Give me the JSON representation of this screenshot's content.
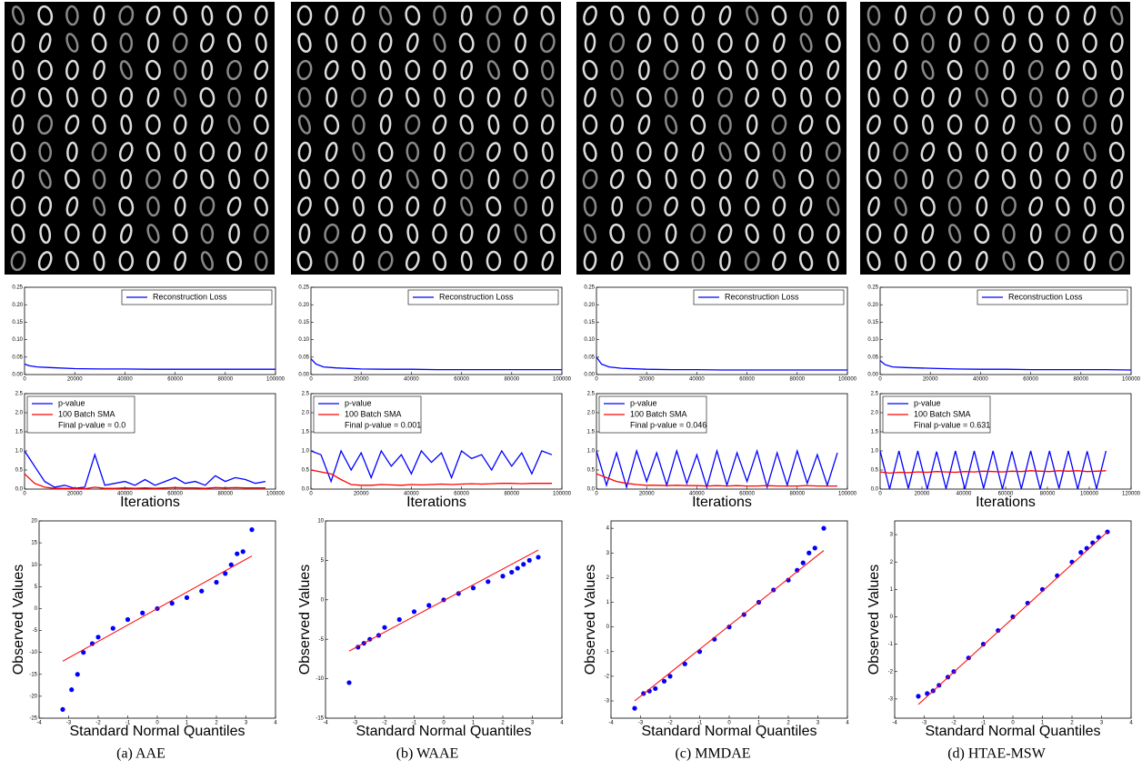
{
  "captions": [
    "(a) AAE",
    "(b) WAAE",
    "(c) MMDAE",
    "(d) HTAE-MSW"
  ],
  "chart_data": [
    {
      "type": "line",
      "legend": "upper right",
      "x": [
        0,
        2000,
        5000,
        10000,
        20000,
        30000,
        40000,
        50000,
        60000,
        70000,
        80000,
        90000,
        100000
      ],
      "xlim": [
        0,
        100000
      ],
      "xticks": [
        0,
        20000,
        40000,
        60000,
        80000,
        100000
      ],
      "ylim": [
        0,
        0.25
      ],
      "yticks": [
        {
          "value": 0,
          "label": "0.00"
        },
        0.05,
        {
          "value": 0.1,
          "label": "0.10"
        },
        0.15,
        {
          "value": 0.2,
          "label": "0.20"
        },
        0.25
      ],
      "series": [
        {
          "name": "Reconstruction Loss",
          "color": "#0000ff",
          "values": [
            0.03,
            0.025,
            0.022,
            0.02,
            0.017,
            0.016,
            0.016,
            0.015,
            0.015,
            0.015,
            0.015,
            0.015,
            0.015
          ]
        }
      ]
    },
    {
      "type": "line",
      "legend": "upper left",
      "annotation": "Final p-value = 0.0",
      "xlabel": "Iterations",
      "x": [
        0,
        4000,
        8000,
        12000,
        16000,
        20000,
        24000,
        28000,
        32000,
        36000,
        40000,
        44000,
        48000,
        52000,
        56000,
        60000,
        64000,
        68000,
        72000,
        76000,
        80000,
        84000,
        88000,
        92000,
        96000
      ],
      "xlim": [
        0,
        100000
      ],
      "xticks": [
        0,
        20000,
        40000,
        60000,
        80000,
        100000
      ],
      "ylim": [
        0,
        2.5
      ],
      "yticks": [
        {
          "value": 0,
          "label": "0.0"
        },
        0.5,
        {
          "value": 1,
          "label": "1.0"
        },
        1.5,
        {
          "value": 2,
          "label": "2.0"
        },
        2.5
      ],
      "series": [
        {
          "name": "p-value",
          "color": "#0000ff",
          "values": [
            1.0,
            0.6,
            0.2,
            0.05,
            0.1,
            0.02,
            0.05,
            0.9,
            0.1,
            0.15,
            0.2,
            0.1,
            0.25,
            0.1,
            0.2,
            0.3,
            0.15,
            0.2,
            0.1,
            0.35,
            0.2,
            0.3,
            0.25,
            0.15,
            0.2
          ]
        },
        {
          "name": "100 Batch SMA",
          "color": "#ff0000",
          "values": [
            0.4,
            0.15,
            0.05,
            0.02,
            0.02,
            0.01,
            0.01,
            0.05,
            0.02,
            0.02,
            0.03,
            0.02,
            0.03,
            0.02,
            0.03,
            0.04,
            0.03,
            0.03,
            0.02,
            0.04,
            0.03,
            0.04,
            0.03,
            0.03,
            0.03
          ]
        }
      ]
    },
    {
      "type": "scatter",
      "xlabel": "Standard Normal Quantiles",
      "ylabel": "Observed Values",
      "xlim": [
        -4,
        4
      ],
      "xticks": [
        -4,
        -3,
        -2,
        -1,
        0,
        1,
        2,
        3,
        4
      ],
      "ylim": [
        -25,
        20
      ],
      "yticks": [
        -25,
        -20,
        -15,
        -10,
        -5,
        0,
        5,
        10,
        15,
        20
      ],
      "series": [
        {
          "style": "points",
          "color": "#0000ff",
          "x": [
            -3.2,
            -2.9,
            -2.7,
            -2.5,
            -2.2,
            -2.0,
            -1.5,
            -1.0,
            -0.5,
            0,
            0.5,
            1.0,
            1.5,
            2.0,
            2.3,
            2.5,
            2.7,
            2.9,
            3.2
          ],
          "values": [
            -23,
            -18.5,
            -15,
            -10,
            -8,
            -6.5,
            -4.5,
            -2.5,
            -1,
            0,
            1.2,
            2.5,
            4,
            6,
            8,
            10,
            12.5,
            13,
            18
          ]
        },
        {
          "style": "line",
          "color": "#ff0000",
          "x": [
            -3.2,
            3.2
          ],
          "values": [
            -12,
            12
          ]
        }
      ]
    },
    {
      "type": "line",
      "legend": "upper right",
      "x": [
        0,
        2000,
        5000,
        10000,
        20000,
        30000,
        40000,
        50000,
        60000,
        70000,
        80000,
        90000,
        100000
      ],
      "xlim": [
        0,
        100000
      ],
      "xticks": [
        0,
        20000,
        40000,
        60000,
        80000,
        100000
      ],
      "ylim": [
        0,
        0.25
      ],
      "yticks": [
        {
          "value": 0,
          "label": "0.00"
        },
        0.05,
        {
          "value": 0.1,
          "label": "0.10"
        },
        0.15,
        {
          "value": 0.2,
          "label": "0.20"
        },
        0.25
      ],
      "series": [
        {
          "name": "Reconstruction Loss",
          "color": "#0000ff",
          "values": [
            0.045,
            0.03,
            0.022,
            0.019,
            0.016,
            0.015,
            0.015,
            0.014,
            0.014,
            0.014,
            0.014,
            0.014,
            0.014
          ]
        }
      ]
    },
    {
      "type": "line",
      "legend": "upper left",
      "annotation": "Final p-value = 0.001",
      "xlabel": "Iterations",
      "x": [
        0,
        4000,
        8000,
        12000,
        16000,
        20000,
        24000,
        28000,
        32000,
        36000,
        40000,
        44000,
        48000,
        52000,
        56000,
        60000,
        64000,
        68000,
        72000,
        76000,
        80000,
        84000,
        88000,
        92000,
        96000
      ],
      "xlim": [
        0,
        100000
      ],
      "xticks": [
        0,
        20000,
        40000,
        60000,
        80000,
        100000
      ],
      "ylim": [
        0,
        2.5
      ],
      "yticks": [
        {
          "value": 0,
          "label": "0.0"
        },
        0.5,
        {
          "value": 1,
          "label": "1.0"
        },
        1.5,
        {
          "value": 2,
          "label": "2.0"
        },
        2.5
      ],
      "series": [
        {
          "name": "p-value",
          "color": "#0000ff",
          "values": [
            1,
            0.9,
            0.2,
            1,
            0.5,
            0.95,
            0.3,
            1,
            0.6,
            0.9,
            0.4,
            1,
            0.7,
            0.95,
            0.3,
            1,
            0.8,
            0.9,
            0.5,
            1,
            0.6,
            0.95,
            0.4,
            1,
            0.9
          ]
        },
        {
          "name": "100 Batch SMA",
          "color": "#ff0000",
          "values": [
            0.5,
            0.45,
            0.4,
            0.25,
            0.12,
            0.1,
            0.1,
            0.12,
            0.11,
            0.1,
            0.12,
            0.11,
            0.12,
            0.13,
            0.12,
            0.13,
            0.14,
            0.13,
            0.14,
            0.15,
            0.15,
            0.14,
            0.15,
            0.15,
            0.15
          ]
        }
      ]
    },
    {
      "type": "scatter",
      "xlabel": "Standard Normal Quantiles",
      "ylabel": "Observed Values",
      "xlim": [
        -4,
        4
      ],
      "xticks": [
        -4,
        -3,
        -2,
        -1,
        0,
        1,
        2,
        3,
        4
      ],
      "ylim": [
        -15,
        10
      ],
      "yticks": [
        -15,
        -10,
        -5,
        0,
        5,
        10
      ],
      "series": [
        {
          "style": "points",
          "color": "#0000ff",
          "x": [
            -3.2,
            -2.9,
            -2.7,
            -2.5,
            -2.2,
            -2.0,
            -1.5,
            -1.0,
            -0.5,
            0,
            0.5,
            1.0,
            1.5,
            2.0,
            2.3,
            2.5,
            2.7,
            2.9,
            3.2
          ],
          "values": [
            -10.5,
            -6,
            -5.5,
            -5,
            -4.5,
            -3.5,
            -2.5,
            -1.5,
            -0.7,
            0,
            0.8,
            1.5,
            2.3,
            3,
            3.5,
            4,
            4.5,
            5,
            5.4
          ]
        },
        {
          "style": "line",
          "color": "#ff0000",
          "x": [
            -3.2,
            3.2
          ],
          "values": [
            -6.5,
            6.3
          ]
        }
      ]
    },
    {
      "type": "line",
      "legend": "upper right",
      "x": [
        0,
        2000,
        5000,
        10000,
        20000,
        30000,
        40000,
        50000,
        60000,
        70000,
        80000,
        90000,
        100000
      ],
      "xlim": [
        0,
        100000
      ],
      "xticks": [
        0,
        20000,
        40000,
        60000,
        80000,
        100000
      ],
      "ylim": [
        0,
        0.25
      ],
      "yticks": [
        {
          "value": 0,
          "label": "0.00"
        },
        0.05,
        {
          "value": 0.1,
          "label": "0.10"
        },
        0.15,
        {
          "value": 0.2,
          "label": "0.20"
        },
        0.25
      ],
      "series": [
        {
          "name": "Reconstruction Loss",
          "color": "#0000ff",
          "values": [
            0.05,
            0.03,
            0.022,
            0.018,
            0.015,
            0.014,
            0.014,
            0.013,
            0.013,
            0.013,
            0.013,
            0.013,
            0.013
          ]
        }
      ]
    },
    {
      "type": "line",
      "legend": "upper left",
      "annotation": "Final p-value = 0.046",
      "xlabel": "Iterations",
      "x": [
        0,
        4000,
        8000,
        12000,
        16000,
        20000,
        24000,
        28000,
        32000,
        36000,
        40000,
        44000,
        48000,
        52000,
        56000,
        60000,
        64000,
        68000,
        72000,
        76000,
        80000,
        84000,
        88000,
        92000,
        96000
      ],
      "xlim": [
        0,
        100000
      ],
      "xticks": [
        0,
        20000,
        40000,
        60000,
        80000,
        100000
      ],
      "ylim": [
        0,
        2.5
      ],
      "yticks": [
        {
          "value": 0,
          "label": "0.0"
        },
        0.5,
        {
          "value": 1,
          "label": "1.0"
        },
        1.5,
        {
          "value": 2,
          "label": "2.0"
        },
        2.5
      ],
      "series": [
        {
          "name": "p-value",
          "color": "#0000ff",
          "values": [
            1,
            0.1,
            0.95,
            0.05,
            1,
            0.2,
            0.95,
            0.1,
            1,
            0.15,
            0.9,
            0.05,
            1,
            0.1,
            0.95,
            0.2,
            1,
            0.05,
            0.95,
            0.1,
            1,
            0.15,
            0.9,
            0.1,
            0.95
          ]
        },
        {
          "name": "100 Batch SMA",
          "color": "#ff0000",
          "values": [
            0.4,
            0.3,
            0.2,
            0.15,
            0.12,
            0.1,
            0.1,
            0.09,
            0.1,
            0.09,
            0.09,
            0.08,
            0.09,
            0.08,
            0.09,
            0.08,
            0.08,
            0.09,
            0.08,
            0.08,
            0.08,
            0.09,
            0.08,
            0.08,
            0.08
          ]
        }
      ]
    },
    {
      "type": "scatter",
      "xlabel": "Standard Normal Quantiles",
      "ylabel": "Observed Values",
      "xlim": [
        -4,
        4
      ],
      "xticks": [
        -4,
        -3,
        -2,
        -1,
        0,
        1,
        2,
        3,
        4
      ],
      "ylim": [
        -3.7,
        4.3
      ],
      "yticks": [
        -3,
        -2,
        -1,
        0,
        1,
        2,
        3,
        4
      ],
      "series": [
        {
          "style": "points",
          "color": "#0000ff",
          "x": [
            -3.2,
            -2.9,
            -2.7,
            -2.5,
            -2.2,
            -2.0,
            -1.5,
            -1.0,
            -0.5,
            0,
            0.5,
            1.0,
            1.5,
            2.0,
            2.3,
            2.5,
            2.7,
            2.9,
            3.2
          ],
          "values": [
            -3.3,
            -2.7,
            -2.6,
            -2.5,
            -2.2,
            -2.0,
            -1.5,
            -1.0,
            -0.5,
            0,
            0.5,
            1.0,
            1.5,
            1.9,
            2.3,
            2.6,
            3.0,
            3.2,
            4.0
          ]
        },
        {
          "style": "line",
          "color": "#ff0000",
          "x": [
            -3.2,
            3.2
          ],
          "values": [
            -3,
            3.1
          ]
        }
      ]
    },
    {
      "type": "line",
      "legend": "upper right",
      "x": [
        0,
        2000,
        5000,
        10000,
        20000,
        30000,
        40000,
        50000,
        60000,
        70000,
        80000,
        90000,
        100000
      ],
      "xlim": [
        0,
        100000
      ],
      "xticks": [
        0,
        20000,
        40000,
        60000,
        80000,
        100000
      ],
      "ylim": [
        0,
        0.25
      ],
      "yticks": [
        {
          "value": 0,
          "label": "0.00"
        },
        0.05,
        {
          "value": 0.1,
          "label": "0.10"
        },
        0.15,
        {
          "value": 0.2,
          "label": "0.20"
        },
        0.25
      ],
      "series": [
        {
          "name": "Reconstruction Loss",
          "color": "#0000ff",
          "values": [
            0.04,
            0.028,
            0.022,
            0.02,
            0.018,
            0.016,
            0.015,
            0.015,
            0.014,
            0.014,
            0.014,
            0.014,
            0.013
          ]
        }
      ]
    },
    {
      "type": "line",
      "legend": "upper left",
      "annotation": "Final p-value = 0.631",
      "xlabel": "Iterations",
      "x": [
        0,
        4500,
        9000,
        13500,
        18000,
        22500,
        27000,
        31500,
        36000,
        40500,
        45000,
        49500,
        54000,
        58500,
        63000,
        67500,
        72000,
        76500,
        81000,
        85500,
        90000,
        94500,
        99000,
        103500,
        108000
      ],
      "xlim": [
        0,
        120000
      ],
      "xticks": [
        0,
        20000,
        40000,
        60000,
        80000,
        100000,
        120000
      ],
      "ylim": [
        0,
        2.5
      ],
      "yticks": [
        {
          "value": 0,
          "label": "0.0"
        },
        0.5,
        {
          "value": 1,
          "label": "1.0"
        },
        1.5,
        {
          "value": 2,
          "label": "2.0"
        },
        2.5
      ],
      "series": [
        {
          "name": "p-value",
          "color": "#0000ff",
          "values": [
            1,
            0,
            1,
            0.02,
            1,
            0,
            0.98,
            0.01,
            1,
            0,
            1,
            0.02,
            1,
            0,
            0.99,
            0.01,
            1,
            0,
            1,
            0.02,
            1,
            0,
            0.99,
            0.01,
            1
          ]
        },
        {
          "name": "100 Batch SMA",
          "color": "#ff0000",
          "values": [
            0.45,
            0.42,
            0.44,
            0.43,
            0.45,
            0.44,
            0.46,
            0.45,
            0.44,
            0.46,
            0.45,
            0.47,
            0.46,
            0.45,
            0.47,
            0.46,
            0.48,
            0.47,
            0.46,
            0.48,
            0.47,
            0.48,
            0.46,
            0.47,
            0.48
          ]
        }
      ]
    },
    {
      "type": "scatter",
      "xlabel": "Standard Normal Quantiles",
      "ylabel": "Observed Values",
      "xlim": [
        -4,
        4
      ],
      "xticks": [
        -4,
        -3,
        -2,
        -1,
        0,
        1,
        2,
        3,
        4
      ],
      "ylim": [
        -3.7,
        3.5
      ],
      "yticks": [
        -3,
        -2,
        -1,
        0,
        1,
        2,
        3
      ],
      "series": [
        {
          "style": "points",
          "color": "#0000ff",
          "x": [
            -3.2,
            -2.9,
            -2.7,
            -2.5,
            -2.2,
            -2.0,
            -1.5,
            -1.0,
            -0.5,
            0,
            0.5,
            1.0,
            1.5,
            2.0,
            2.3,
            2.5,
            2.7,
            2.9,
            3.2
          ],
          "values": [
            -2.9,
            -2.8,
            -2.7,
            -2.5,
            -2.2,
            -2.0,
            -1.5,
            -1.0,
            -0.5,
            0,
            0.5,
            1.0,
            1.5,
            2.0,
            2.35,
            2.5,
            2.7,
            2.9,
            3.1
          ]
        },
        {
          "style": "line",
          "color": "#ff0000",
          "x": [
            -3.2,
            3.2
          ],
          "values": [
            -3.2,
            3.1
          ]
        }
      ]
    }
  ]
}
